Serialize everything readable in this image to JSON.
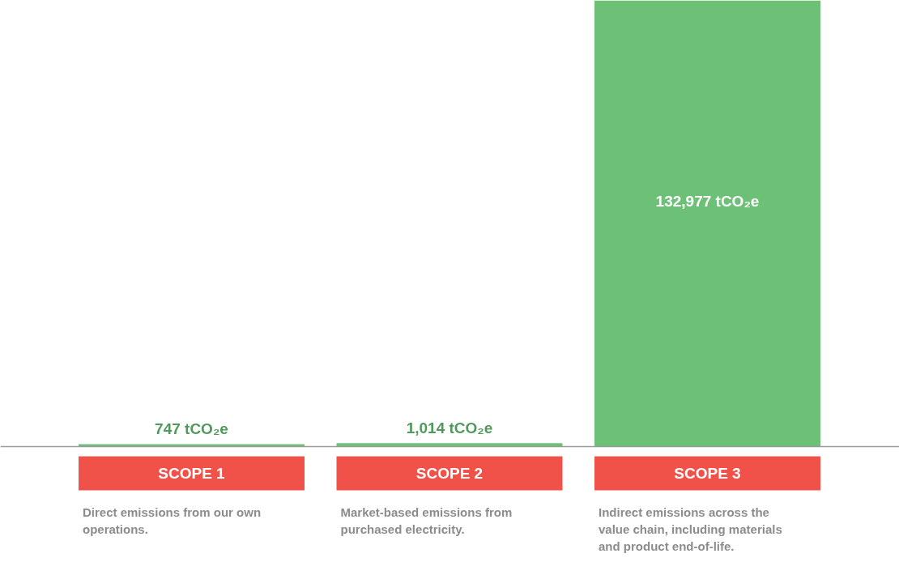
{
  "chart_data": {
    "type": "bar",
    "categories": [
      "SCOPE 1",
      "SCOPE 2",
      "SCOPE 3"
    ],
    "values": [
      747,
      1014,
      132977
    ],
    "color": "#6cc177",
    "value_labels": [
      "747 tCO₂e",
      "1,014 tCO₂e",
      "132,977 tCO₂e"
    ],
    "annotations": [
      "Direct emissions from our own operations.",
      "Market-based emissions from purchased electricity.",
      "Indirect emissions across the value chain, including materials and product end-of-life."
    ],
    "grid": false
  }
}
